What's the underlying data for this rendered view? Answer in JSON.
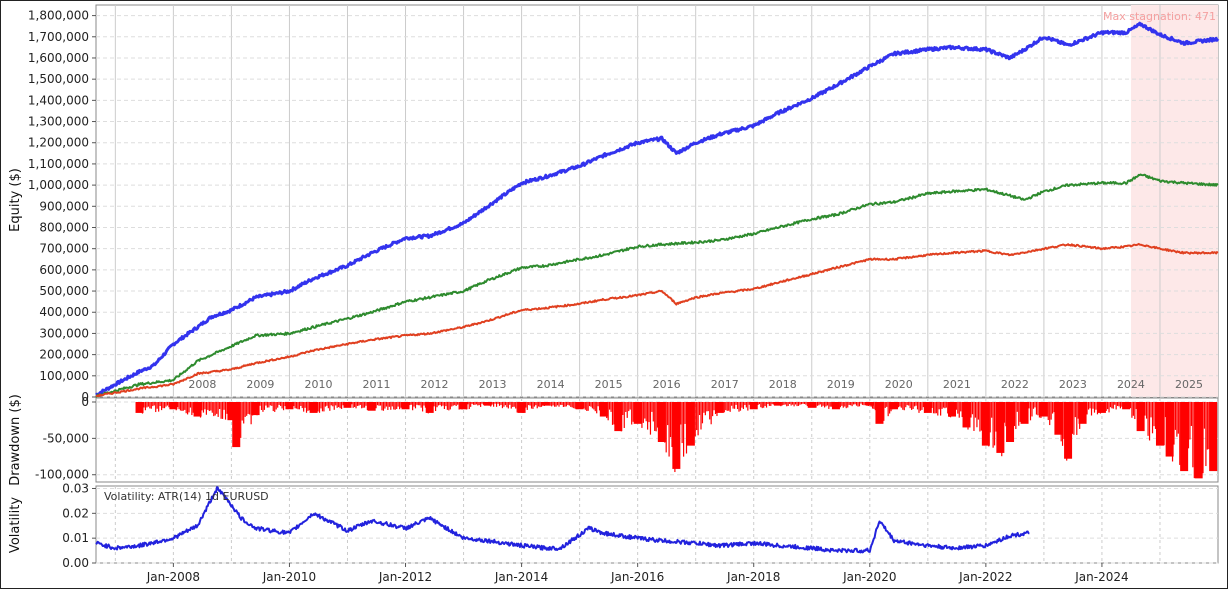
{
  "chart_data": [
    {
      "type": "line",
      "ylabel": "Equity ($)",
      "ylim": [
        0,
        1850000
      ],
      "y_ticks": [
        0,
        100000,
        200000,
        300000,
        400000,
        500000,
        600000,
        700000,
        800000,
        900000,
        1000000,
        1100000,
        1200000,
        1300000,
        1400000,
        1500000,
        1600000,
        1700000,
        1800000
      ],
      "y_tick_labels": [
        "0",
        "100,000",
        "200,000",
        "300,000",
        "400,000",
        "500,000",
        "600,000",
        "700,000",
        "800,000",
        "900,000",
        "1,000,000",
        "1,100,000",
        "1,200,000",
        "1,300,000",
        "1,400,000",
        "1,500,000",
        "1,600,000",
        "1,700,000",
        "1,800,000"
      ],
      "year_labels": [
        "2008",
        "2009",
        "2010",
        "2011",
        "2012",
        "2013",
        "2014",
        "2015",
        "2016",
        "2017",
        "2018",
        "2019",
        "2020",
        "2021",
        "2022",
        "2023",
        "2024",
        "2025"
      ],
      "grid": true,
      "annotation": "Max stagnation: 471",
      "stagnation_range": [
        "2024-07",
        "2026-01"
      ],
      "series": [
        {
          "color": "#3333ee",
          "x": [
            "2006-09",
            "2007-01",
            "2007-06",
            "2007-09",
            "2008-01",
            "2008-06",
            "2008-09",
            "2009-01",
            "2009-06",
            "2010-01",
            "2010-06",
            "2011-01",
            "2011-06",
            "2012-01",
            "2012-06",
            "2013-01",
            "2013-06",
            "2014-01",
            "2014-06",
            "2015-01",
            "2015-06",
            "2016-01",
            "2016-06",
            "2016-09",
            "2017-01",
            "2017-06",
            "2018-01",
            "2018-06",
            "2019-01",
            "2019-06",
            "2020-01",
            "2020-06",
            "2021-01",
            "2021-06",
            "2022-01",
            "2022-06",
            "2022-09",
            "2023-01",
            "2023-06",
            "2024-01",
            "2024-06",
            "2024-09",
            "2025-01",
            "2025-06",
            "2026-01"
          ],
          "y": [
            10000,
            60000,
            120000,
            150000,
            250000,
            330000,
            380000,
            410000,
            470000,
            500000,
            560000,
            620000,
            680000,
            750000,
            760000,
            820000,
            900000,
            1010000,
            1040000,
            1090000,
            1140000,
            1200000,
            1220000,
            1150000,
            1200000,
            1240000,
            1280000,
            1340000,
            1410000,
            1470000,
            1560000,
            1620000,
            1640000,
            1650000,
            1640000,
            1600000,
            1640000,
            1700000,
            1660000,
            1720000,
            1720000,
            1760000,
            1710000,
            1670000,
            1690000
          ]
        },
        {
          "color": "#2e8b2e",
          "x": [
            "2006-09",
            "2007-06",
            "2008-01",
            "2008-06",
            "2009-01",
            "2009-06",
            "2010-01",
            "2010-06",
            "2011-01",
            "2011-06",
            "2012-01",
            "2012-06",
            "2013-01",
            "2013-06",
            "2014-01",
            "2014-06",
            "2015-01",
            "2015-06",
            "2016-01",
            "2016-06",
            "2017-01",
            "2017-06",
            "2018-01",
            "2018-06",
            "2019-01",
            "2019-06",
            "2020-01",
            "2020-06",
            "2021-01",
            "2021-06",
            "2022-01",
            "2022-06",
            "2022-09",
            "2023-01",
            "2023-06",
            "2024-01",
            "2024-06",
            "2024-09",
            "2025-01",
            "2025-06",
            "2026-01"
          ],
          "y": [
            5000,
            60000,
            80000,
            170000,
            240000,
            290000,
            300000,
            330000,
            370000,
            400000,
            450000,
            470000,
            500000,
            550000,
            610000,
            620000,
            650000,
            670000,
            710000,
            720000,
            730000,
            740000,
            770000,
            800000,
            840000,
            860000,
            910000,
            920000,
            960000,
            970000,
            980000,
            950000,
            930000,
            970000,
            1000000,
            1010000,
            1010000,
            1050000,
            1020000,
            1010000,
            1000000
          ]
        },
        {
          "color": "#e04020",
          "x": [
            "2006-09",
            "2007-06",
            "2008-01",
            "2008-06",
            "2009-01",
            "2009-06",
            "2010-01",
            "2010-06",
            "2011-01",
            "2011-06",
            "2012-01",
            "2012-06",
            "2013-01",
            "2013-06",
            "2014-01",
            "2014-06",
            "2015-01",
            "2015-06",
            "2016-01",
            "2016-06",
            "2016-09",
            "2017-01",
            "2017-06",
            "2018-01",
            "2018-06",
            "2019-01",
            "2019-06",
            "2020-01",
            "2020-06",
            "2021-01",
            "2021-06",
            "2022-01",
            "2022-06",
            "2023-01",
            "2023-06",
            "2024-01",
            "2024-06",
            "2024-09",
            "2025-01",
            "2025-06",
            "2026-01"
          ],
          "y": [
            5000,
            40000,
            60000,
            110000,
            130000,
            160000,
            190000,
            220000,
            250000,
            270000,
            290000,
            300000,
            330000,
            360000,
            410000,
            420000,
            440000,
            460000,
            480000,
            500000,
            440000,
            470000,
            490000,
            510000,
            540000,
            580000,
            610000,
            650000,
            650000,
            670000,
            680000,
            690000,
            670000,
            700000,
            720000,
            700000,
            710000,
            720000,
            700000,
            680000,
            680000
          ]
        }
      ]
    },
    {
      "type": "bar",
      "ylabel": "Drawdown ($)",
      "ylim": [
        -110000,
        0
      ],
      "y_ticks": [
        0,
        -50000,
        -100000
      ],
      "y_tick_labels": [
        "0",
        "-50,000",
        "-100,000"
      ],
      "grid": true,
      "color": "#ff0000",
      "x": [
        "2007-06",
        "2008-01",
        "2008-06",
        "2009-01",
        "2009-02",
        "2009-06",
        "2010-01",
        "2010-06",
        "2011-01",
        "2011-06",
        "2012-01",
        "2012-06",
        "2013-01",
        "2013-06",
        "2014-01",
        "2014-06",
        "2015-01",
        "2015-06",
        "2015-09",
        "2016-01",
        "2016-06",
        "2016-09",
        "2016-12",
        "2017-06",
        "2018-01",
        "2018-06",
        "2019-01",
        "2019-06",
        "2020-01",
        "2020-03",
        "2020-06",
        "2021-01",
        "2021-06",
        "2021-09",
        "2022-01",
        "2022-04",
        "2022-06",
        "2022-09",
        "2023-01",
        "2023-04",
        "2023-06",
        "2023-09",
        "2024-01",
        "2024-06",
        "2024-09",
        "2025-01",
        "2025-03",
        "2025-06",
        "2025-09",
        "2025-12"
      ],
      "values": [
        -15000,
        -10000,
        -20000,
        -25000,
        -62000,
        -18000,
        -10000,
        -15000,
        -8000,
        -12000,
        -10000,
        -15000,
        -10000,
        -5000,
        -15000,
        -5000,
        -10000,
        -20000,
        -40000,
        -30000,
        -55000,
        -92000,
        -60000,
        -15000,
        -10000,
        -5000,
        -8000,
        -10000,
        -5000,
        -30000,
        -10000,
        -15000,
        -20000,
        -35000,
        -60000,
        -70000,
        -55000,
        -30000,
        -20000,
        -45000,
        -78000,
        -30000,
        -15000,
        -10000,
        -40000,
        -60000,
        -75000,
        -95000,
        -105000,
        -95000
      ]
    },
    {
      "type": "line",
      "ylabel": "Volatility",
      "title": "Volatility: ATR(14) 1d EURUSD",
      "ylim": [
        0,
        0.031
      ],
      "y_ticks": [
        0,
        0.01,
        0.02,
        0.03
      ],
      "y_tick_labels": [
        "0.00",
        "0.01",
        "0.02",
        "0.03"
      ],
      "x_tick_labels": [
        "Jan-2008",
        "Jan-2010",
        "Jan-2012",
        "Jan-2014",
        "Jan-2016",
        "Jan-2018",
        "Jan-2020",
        "Jan-2022",
        "Jan-2024"
      ],
      "grid": true,
      "color": "#2222dd",
      "x": [
        "2006-09",
        "2007-01",
        "2007-06",
        "2008-01",
        "2008-06",
        "2008-10",
        "2008-12",
        "2009-03",
        "2009-06",
        "2010-01",
        "2010-06",
        "2011-01",
        "2011-06",
        "2012-01",
        "2012-06",
        "2013-01",
        "2013-06",
        "2014-01",
        "2014-06",
        "2014-09",
        "2015-03",
        "2015-06",
        "2016-01",
        "2016-06",
        "2017-01",
        "2017-06",
        "2018-01",
        "2018-06",
        "2019-01",
        "2019-06",
        "2020-01",
        "2020-03",
        "2020-06",
        "2021-01",
        "2021-06",
        "2022-01",
        "2022-06",
        "2022-10"
      ],
      "y": [
        0.008,
        0.006,
        0.007,
        0.01,
        0.015,
        0.03,
        0.026,
        0.018,
        0.014,
        0.012,
        0.02,
        0.013,
        0.017,
        0.014,
        0.018,
        0.01,
        0.009,
        0.007,
        0.006,
        0.006,
        0.014,
        0.012,
        0.01,
        0.009,
        0.008,
        0.007,
        0.008,
        0.007,
        0.006,
        0.005,
        0.005,
        0.017,
        0.009,
        0.007,
        0.006,
        0.007,
        0.011,
        0.012
      ]
    }
  ]
}
